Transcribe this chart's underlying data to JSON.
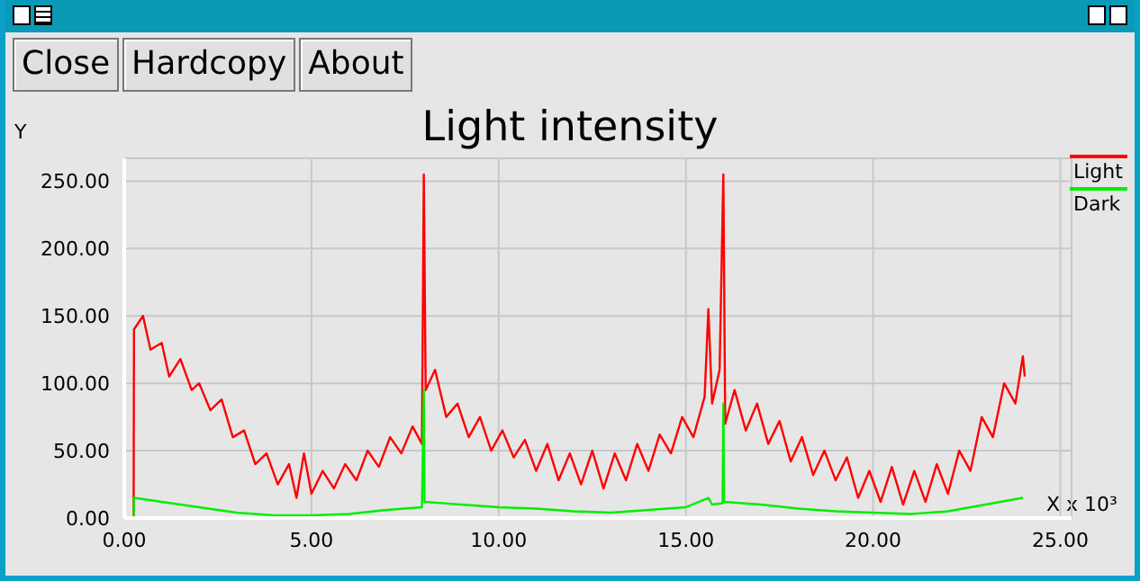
{
  "chart_data": {
    "type": "line",
    "title": "Light intensity",
    "xlabel": "X x 10³",
    "ylabel": "Y",
    "annotations": [
      "Close",
      "Hardcopy",
      "About"
    ],
    "xlim": [
      0,
      25.3
    ],
    "ylim": [
      0,
      267
    ],
    "xticks": [
      {
        "value": 0,
        "label": "0.00"
      },
      {
        "value": 5,
        "label": "5.00"
      },
      {
        "value": 10,
        "label": "10.00"
      },
      {
        "value": 15,
        "label": "15.00"
      },
      {
        "value": 20,
        "label": "20.00"
      },
      {
        "value": 25,
        "label": "25.00"
      }
    ],
    "yticks": [
      {
        "value": 0,
        "label": "0.00"
      },
      {
        "value": 50,
        "label": "50.00"
      },
      {
        "value": 100,
        "label": "100.00"
      },
      {
        "value": 150,
        "label": "150.00"
      },
      {
        "value": 200,
        "label": "200.00"
      },
      {
        "value": 250,
        "label": "250.00"
      }
    ],
    "grid": true,
    "legend": "top right",
    "marker": "none",
    "line_style": "solid",
    "series": [
      {
        "name": "Light",
        "color": "#ff0000",
        "x": [
          0.25,
          0.26,
          0.5,
          0.7,
          1.0,
          1.2,
          1.5,
          1.8,
          2.0,
          2.3,
          2.6,
          2.9,
          3.2,
          3.5,
          3.8,
          4.1,
          4.4,
          4.6,
          4.8,
          5.0,
          5.3,
          5.6,
          5.9,
          6.2,
          6.5,
          6.8,
          7.1,
          7.4,
          7.7,
          7.95,
          8.0,
          8.05,
          8.3,
          8.6,
          8.9,
          9.2,
          9.5,
          9.8,
          10.1,
          10.4,
          10.7,
          11.0,
          11.3,
          11.6,
          11.9,
          12.2,
          12.5,
          12.8,
          13.1,
          13.4,
          13.7,
          14.0,
          14.3,
          14.6,
          14.9,
          15.2,
          15.5,
          15.6,
          15.7,
          15.9,
          16.0,
          16.05,
          16.3,
          16.6,
          16.9,
          17.2,
          17.5,
          17.8,
          18.1,
          18.4,
          18.7,
          19.0,
          19.3,
          19.6,
          19.9,
          20.2,
          20.5,
          20.8,
          21.1,
          21.4,
          21.7,
          22.0,
          22.3,
          22.6,
          22.9,
          23.2,
          23.5,
          23.8,
          24.0,
          24.05
        ],
        "values": [
          0,
          140,
          150,
          125,
          130,
          105,
          118,
          95,
          100,
          80,
          88,
          60,
          65,
          40,
          48,
          25,
          40,
          15,
          48,
          18,
          35,
          22,
          40,
          28,
          50,
          38,
          60,
          48,
          68,
          55,
          255,
          95,
          110,
          75,
          85,
          60,
          75,
          50,
          65,
          45,
          58,
          35,
          55,
          28,
          48,
          25,
          50,
          22,
          48,
          28,
          55,
          35,
          62,
          48,
          75,
          60,
          90,
          155,
          85,
          110,
          255,
          70,
          95,
          65,
          85,
          55,
          72,
          42,
          60,
          32,
          50,
          28,
          45,
          15,
          35,
          12,
          38,
          10,
          35,
          12,
          40,
          18,
          50,
          35,
          75,
          60,
          100,
          85,
          120,
          105
        ]
      },
      {
        "name": "Dark",
        "color": "#00ee00",
        "x": [
          0.25,
          0.26,
          1,
          2,
          3,
          4,
          5,
          6,
          7,
          7.95,
          8.0,
          8.02,
          9,
          10,
          11,
          12,
          13,
          14,
          15,
          15.6,
          15.7,
          15.98,
          16.0,
          16.02,
          17,
          18,
          19,
          20,
          21,
          22,
          23,
          24
        ],
        "values": [
          0,
          15,
          12,
          8,
          4,
          2,
          2,
          3,
          6,
          8,
          95,
          12,
          10,
          8,
          7,
          5,
          4,
          6,
          8,
          15,
          10,
          11,
          85,
          12,
          10,
          7,
          5,
          4,
          3,
          5,
          10,
          15
        ]
      }
    ]
  }
}
